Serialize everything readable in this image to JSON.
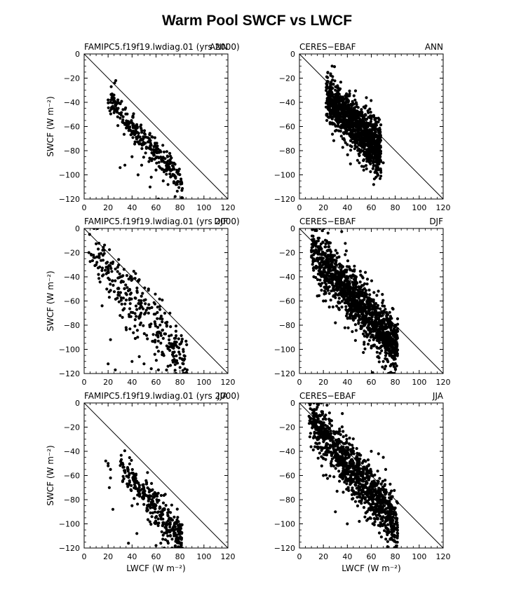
{
  "title": "Warm Pool SWCF vs LWCF",
  "chart_data": [
    {
      "type": "scatter",
      "left_label": "FAMIPC5.f19f19.lwdiag.01 (yrs 2000)",
      "right_label": "ANN",
      "xlabel": "",
      "ylabel": "SWCF (W m⁻²)",
      "xlim": [
        0,
        120
      ],
      "ylim": [
        -120,
        0
      ],
      "xticks": [
        "0",
        "20",
        "40",
        "60",
        "80",
        "100",
        "120"
      ],
      "yticks": [
        "0",
        "−20",
        "−40",
        "−60",
        "−80",
        "−100",
        "−120"
      ],
      "reference_line": "y = -x",
      "cloud": {
        "x": [
          20,
          82
        ],
        "y_start": -36,
        "slope": -1.15,
        "spread": 6,
        "n": 300,
        "seed": 11
      },
      "points": [
        [
          20,
          -38
        ],
        [
          22,
          -40
        ],
        [
          24,
          -45
        ],
        [
          28,
          -52
        ],
        [
          30,
          -94
        ],
        [
          34,
          -92
        ],
        [
          40,
          -85
        ],
        [
          45,
          -100
        ],
        [
          52,
          -78
        ],
        [
          55,
          -110
        ],
        [
          62,
          -120
        ],
        [
          66,
          -105
        ],
        [
          70,
          -108
        ],
        [
          76,
          -118
        ],
        [
          82,
          -119
        ],
        [
          56,
          -102
        ],
        [
          48,
          -92
        ],
        [
          60,
          -96
        ]
      ]
    },
    {
      "type": "scatter",
      "left_label": "CERES−EBAF",
      "right_label": "ANN",
      "xlabel": "",
      "ylabel": "",
      "xlim": [
        0,
        120
      ],
      "ylim": [
        -120,
        0
      ],
      "xticks": [
        "0",
        "20",
        "40",
        "60",
        "80",
        "100",
        "120"
      ],
      "yticks": [
        "0",
        "−20",
        "−40",
        "−60",
        "−80",
        "−100",
        "−120"
      ],
      "reference_line": "y = -x",
      "cloud": {
        "x": [
          22,
          68
        ],
        "y_start": -33,
        "slope": -1.05,
        "spread": 10,
        "n": 1300,
        "seed": 23
      },
      "points": [
        [
          30,
          -30
        ],
        [
          45,
          -48
        ],
        [
          55,
          -50
        ],
        [
          60,
          -52
        ],
        [
          64,
          -56
        ],
        [
          66,
          -88
        ],
        [
          70,
          -90
        ],
        [
          68,
          -98
        ],
        [
          64,
          -102
        ],
        [
          62,
          -108
        ],
        [
          56,
          -95
        ],
        [
          50,
          -90
        ],
        [
          40,
          -75
        ],
        [
          35,
          -68
        ]
      ]
    },
    {
      "type": "scatter",
      "left_label": "FAMIPC5.f19f19.lwdiag.01 (yrs 2000)",
      "right_label": "DJF",
      "xlabel": "",
      "ylabel": "SWCF (W m⁻²)",
      "xlim": [
        0,
        120
      ],
      "ylim": [
        -120,
        0
      ],
      "xticks": [
        "0",
        "20",
        "40",
        "60",
        "80",
        "100",
        "120"
      ],
      "yticks": [
        "0",
        "−20",
        "−40",
        "−60",
        "−80",
        "−100",
        "−120"
      ],
      "reference_line": "y = -x",
      "cloud": {
        "x": [
          4,
          86
        ],
        "y_start": -18,
        "slope": -1.15,
        "spread": 12,
        "n": 330,
        "seed": 37
      },
      "points": [
        [
          4,
          -20
        ],
        [
          6,
          -22
        ],
        [
          8,
          -24
        ],
        [
          10,
          -30
        ],
        [
          12,
          -38
        ],
        [
          15,
          -64
        ],
        [
          20,
          -112
        ],
        [
          22,
          -92
        ],
        [
          26,
          -117
        ],
        [
          30,
          -72
        ],
        [
          35,
          -82
        ],
        [
          40,
          -110
        ],
        [
          46,
          -106
        ],
        [
          50,
          -112
        ],
        [
          56,
          -116
        ],
        [
          62,
          -117
        ],
        [
          70,
          -114
        ],
        [
          80,
          -115
        ],
        [
          86,
          -117
        ]
      ]
    },
    {
      "type": "scatter",
      "left_label": "CERES−EBAF",
      "right_label": "DJF",
      "xlabel": "",
      "ylabel": "",
      "xlim": [
        0,
        120
      ],
      "ylim": [
        -120,
        0
      ],
      "xticks": [
        "0",
        "20",
        "40",
        "60",
        "80",
        "100",
        "120"
      ],
      "yticks": [
        "0",
        "−20",
        "−40",
        "−60",
        "−80",
        "−100",
        "−120"
      ],
      "reference_line": "y = -x",
      "cloud": {
        "x": [
          10,
          82
        ],
        "y_start": -18,
        "slope": -1.12,
        "spread": 12,
        "n": 1400,
        "seed": 49
      },
      "points": [
        [
          10,
          -18
        ],
        [
          14,
          -20
        ],
        [
          20,
          -60
        ],
        [
          25,
          -65
        ],
        [
          30,
          -78
        ],
        [
          60,
          -60
        ],
        [
          70,
          -70
        ],
        [
          75,
          -75
        ],
        [
          80,
          -80
        ],
        [
          82,
          -85
        ],
        [
          70,
          -110
        ],
        [
          72,
          -114
        ],
        [
          80,
          -108
        ]
      ]
    },
    {
      "type": "scatter",
      "left_label": "FAMIPC5.f19f19.lwdiag.01 (yrs 2000)",
      "right_label": "JJA",
      "xlabel": "LWCF (W m⁻²)",
      "ylabel": "SWCF (W m⁻²)",
      "xlim": [
        0,
        120
      ],
      "ylim": [
        -120,
        0
      ],
      "xticks": [
        "0",
        "20",
        "40",
        "60",
        "80",
        "100",
        "120"
      ],
      "yticks": [
        "0",
        "−20",
        "−40",
        "−60",
        "−80",
        "−100",
        "−120"
      ],
      "reference_line": "y = -x",
      "cloud": {
        "x": [
          30,
          82
        ],
        "y_start": -52,
        "slope": -1.15,
        "spread": 8,
        "n": 330,
        "seed": 61
      },
      "points": [
        [
          18,
          -48
        ],
        [
          20,
          -50
        ],
        [
          20,
          -52
        ],
        [
          22,
          -55
        ],
        [
          21,
          -70
        ],
        [
          24,
          -88
        ],
        [
          22,
          -62
        ],
        [
          37,
          -116
        ],
        [
          40,
          -85
        ],
        [
          44,
          -108
        ],
        [
          60,
          -118
        ],
        [
          64,
          -116
        ],
        [
          72,
          -110
        ],
        [
          80,
          -116
        ],
        [
          78,
          -112
        ]
      ]
    },
    {
      "type": "scatter",
      "left_label": "CERES−EBAF",
      "right_label": "JJA",
      "xlabel": "LWCF (W m⁻²)",
      "ylabel": "",
      "xlim": [
        0,
        120
      ],
      "ylim": [
        -120,
        0
      ],
      "xticks": [
        "0",
        "20",
        "40",
        "60",
        "80",
        "100",
        "120"
      ],
      "yticks": [
        "0",
        "−20",
        "−40",
        "−60",
        "−80",
        "−100",
        "−120"
      ],
      "reference_line": "y = -x",
      "cloud": {
        "x": [
          8,
          82
        ],
        "y_start": -11,
        "slope": -1.22,
        "spread": 11,
        "n": 1100,
        "seed": 73
      },
      "points": [
        [
          8,
          -11
        ],
        [
          10,
          -13
        ],
        [
          12,
          -16
        ],
        [
          20,
          -60
        ],
        [
          30,
          -90
        ],
        [
          40,
          -100
        ],
        [
          50,
          -98
        ],
        [
          60,
          -40
        ],
        [
          66,
          -42
        ],
        [
          70,
          -45
        ],
        [
          72,
          -55
        ],
        [
          80,
          -104
        ],
        [
          82,
          -108
        ],
        [
          78,
          -110
        ]
      ]
    }
  ]
}
